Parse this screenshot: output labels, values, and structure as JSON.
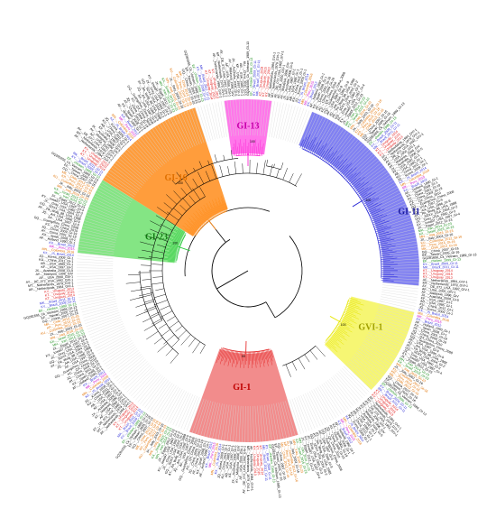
{
  "figure": {
    "clades": [
      {
        "id": "gi16",
        "label": "GI-16",
        "color": "#ff8c1a",
        "fill": "#ff8c1a",
        "labelColor": "#e07000"
      },
      {
        "id": "gi13",
        "label": "GI-13",
        "color": "#ff2bd6",
        "fill": "#ff5fe6",
        "labelColor": "#c400a8"
      },
      {
        "id": "gi11",
        "label": "GI-11",
        "color": "#2a2ad6",
        "fill": "#6b6bf0",
        "labelColor": "#1a1aa0"
      },
      {
        "id": "gvi1",
        "label": "GVI-1",
        "color": "#e6e600",
        "fill": "#f4f45a",
        "labelColor": "#a0a000"
      },
      {
        "id": "gi1",
        "label": "GI-1",
        "color": "#e63030",
        "fill": "#f07878",
        "labelColor": "#c00000"
      },
      {
        "id": "gi23",
        "label": "GI-23",
        "color": "#2ecc40",
        "fill": "#6ee06e",
        "labelColor": "#107a10"
      }
    ],
    "bootstrap_labels": [
      "100",
      "100",
      "100",
      "100",
      "99",
      "100"
    ],
    "leaf_colors": {
      "default": "#000000",
      "blue": "#2a2ad6",
      "red": "#e01010",
      "green": "#1a8c1a",
      "orange": "#e07000",
      "magenta": "#cc00cc"
    },
    "leaves": [
      {
        "text": "GQ281656_Ck_Vietnam_1989_GI-13",
        "color": "default"
      },
      {
        "text": "EF..._chicken_1999_GI-13",
        "color": "green"
      },
      {
        "text": "KY..._Brazil_2009_GI-11",
        "color": "blue"
      },
      {
        "text": "MK..._Brazil_2011_GI-11",
        "color": "blue"
      },
      {
        "text": "KT..._Uruguay_2014",
        "color": "red"
      },
      {
        "text": "KT..._Uruguay_2015",
        "color": "red"
      },
      {
        "text": "KY..._Uruguay_2013",
        "color": "red"
      },
      {
        "text": "AF..._Netherlands_1984_GVI-1",
        "color": "default"
      },
      {
        "text": "MT..._Netherlands_1979_GVI-1",
        "color": "default"
      },
      {
        "text": "AY..._DE_072_USA_1992_GIV-1",
        "color": "default"
      },
      {
        "text": "AF..._USA_2000_GIV-1",
        "color": "default"
      },
      {
        "text": "AY..._Malaysia_1996_GIV",
        "color": "default"
      },
      {
        "text": "JX..._Australia_2008_GI-5",
        "color": "default"
      },
      {
        "text": "KF..._USA_1997_GI-1",
        "color": "default"
      },
      {
        "text": "AB..._USA_1985_GI-1",
        "color": "default"
      },
      {
        "text": "KU..._China_2011_GI-1",
        "color": "default"
      },
      {
        "text": "JQ..._Korea_2009_GI-1",
        "color": "default"
      },
      {
        "text": "KX..._IS_Brazil_2014",
        "color": "blue"
      },
      {
        "text": "MN..._Colombia_2016",
        "color": "orange"
      },
      {
        "text": "MK..._Peru_2015",
        "color": "magenta"
      },
      {
        "text": "KX..._Brazil_2012",
        "color": "blue"
      },
      {
        "text": "AF..._Holland_1990_GI-1",
        "color": "default"
      },
      {
        "text": "KX..._Spain_2008_GI-1",
        "color": "default"
      },
      {
        "text": "AY..._China_2001_GI-19",
        "color": "default"
      },
      {
        "text": "JQ..._China_2009_GI-19",
        "color": "default"
      },
      {
        "text": "KC..._QX_China_2010",
        "color": "default"
      },
      {
        "text": "GQ..._Guangzhou_China_2008",
        "color": "default"
      },
      {
        "text": "AF..._USA_1997_GI-9",
        "color": "default"
      },
      {
        "text": "JQ..._Ark_USA_1996_GI-9",
        "color": "default"
      },
      {
        "text": "AY..._PA_Wolg_88_USA_1988",
        "color": "default"
      },
      {
        "text": "GQ..._SDXX_USA_2004_GI-2",
        "color": "default"
      },
      {
        "text": "JX..._Gray_USA_1960_GI-3",
        "color": "default"
      },
      {
        "text": "KY..._Iowa97_USA_1997_GI-4",
        "color": "default"
      },
      {
        "text": "JX..._Egypt_2012_GI-23",
        "color": "default"
      },
      {
        "text": "MH..._Iran_2014_GI-23",
        "color": "green"
      },
      {
        "text": "KX..._Israel_2015_GI-23",
        "color": "green"
      },
      {
        "text": "MN..._Iraq_2016_GI-23",
        "color": "orange"
      },
      {
        "text": "JX..._Italy_2003_GI-16",
        "color": "default"
      },
      {
        "text": "KU..._Colombia_2012_GI-16",
        "color": "orange"
      },
      {
        "text": "KP..._Peru_2014_GI-16",
        "color": "orange"
      },
      {
        "text": "MK..._Chile_2013_GI-16",
        "color": "orange"
      },
      {
        "text": "GQ..._China_2007_GI-16",
        "color": "default"
      },
      {
        "text": "EF..._Taiwan_2005_GI-16",
        "color": "default"
      }
    ]
  }
}
